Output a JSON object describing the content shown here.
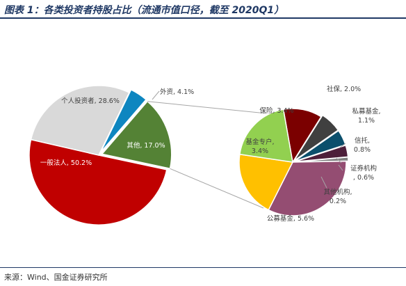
{
  "header": {
    "title": "图表 1：各类投资者持股占比（流通市值口径，截至 2020Q1）"
  },
  "footer": {
    "source": "来源：Wind、国金证券研究所"
  },
  "chart_data": [
    {
      "type": "pie",
      "slices": [
        {
          "label": "外资, 4.1%",
          "value": 4.1,
          "color": "#0e86c0"
        },
        {
          "label": "其他, 17.0%",
          "value": 17.0,
          "color": "#548235"
        },
        {
          "label": "一般法人, 50.2%",
          "value": 50.2,
          "color": "#c00000"
        },
        {
          "label": "个人投资者, 28.6%",
          "value": 28.6,
          "color": "#d9d9d9"
        }
      ]
    },
    {
      "type": "pie",
      "slices": [
        {
          "label": "社保, 2.0%",
          "value": 2.0,
          "color": "#7b0000"
        },
        {
          "label": "私募基金, 1.1%",
          "value": 1.1,
          "color": "#404040"
        },
        {
          "label": "信托, 0.8%",
          "value": 0.8,
          "color": "#0b4f6c"
        },
        {
          "label": "证券机构, 0.6%",
          "value": 0.6,
          "color": "#4d1f3a"
        },
        {
          "label": "其他机构, 0.2%",
          "value": 0.2,
          "color": "#7f7f7f"
        },
        {
          "label": "公募基金, 5.6%",
          "value": 5.6,
          "color": "#944d72"
        },
        {
          "label": "基金专户, 3.4%",
          "value": 3.4,
          "color": "#ffc000"
        },
        {
          "label": "保险, 3.4%",
          "value": 3.4,
          "color": "#92d050"
        }
      ]
    }
  ]
}
